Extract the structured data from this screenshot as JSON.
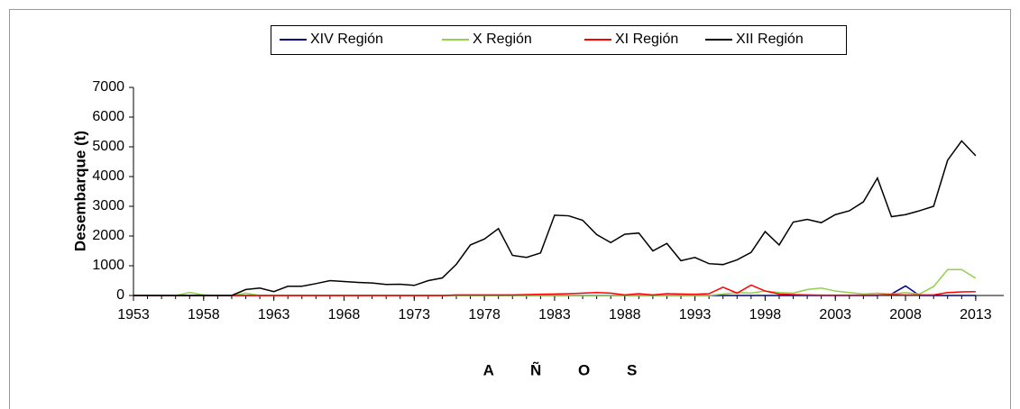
{
  "chart_data": {
    "type": "line",
    "ylabel": "Desembarque (t)",
    "xlabel": "A Ñ O S",
    "x": [
      1953,
      1954,
      1955,
      1956,
      1957,
      1958,
      1959,
      1960,
      1961,
      1962,
      1963,
      1964,
      1965,
      1966,
      1967,
      1968,
      1969,
      1970,
      1971,
      1972,
      1973,
      1974,
      1975,
      1976,
      1977,
      1978,
      1979,
      1980,
      1981,
      1982,
      1983,
      1984,
      1985,
      1986,
      1987,
      1988,
      1989,
      1990,
      1991,
      1992,
      1993,
      1994,
      1995,
      1996,
      1997,
      1998,
      1999,
      2000,
      2001,
      2002,
      2003,
      2004,
      2005,
      2006,
      2007,
      2008,
      2009,
      2010,
      2011,
      2012,
      2013
    ],
    "series": [
      {
        "name": "XIV Región",
        "color": "#000080",
        "values": [
          0,
          0,
          0,
          0,
          0,
          0,
          0,
          0,
          0,
          0,
          0,
          0,
          0,
          0,
          0,
          0,
          0,
          0,
          0,
          0,
          0,
          0,
          0,
          0,
          0,
          0,
          0,
          0,
          0,
          0,
          0,
          0,
          0,
          0,
          0,
          0,
          0,
          0,
          0,
          0,
          0,
          0,
          0,
          0,
          0,
          0,
          0,
          0,
          0,
          0,
          0,
          0,
          0,
          0,
          50,
          320,
          0,
          0,
          0,
          0,
          0
        ]
      },
      {
        "name": "X Región",
        "color": "#92d050",
        "values": [
          0,
          0,
          0,
          0,
          100,
          20,
          0,
          0,
          80,
          0,
          0,
          0,
          0,
          0,
          0,
          0,
          0,
          0,
          0,
          0,
          0,
          0,
          0,
          0,
          0,
          0,
          0,
          0,
          0,
          0,
          0,
          0,
          0,
          0,
          0,
          0,
          0,
          0,
          0,
          0,
          0,
          0,
          50,
          100,
          80,
          150,
          100,
          80,
          200,
          250,
          150,
          100,
          50,
          80,
          50,
          100,
          50,
          300,
          870,
          870,
          580
        ]
      },
      {
        "name": "XI Región",
        "color": "#ff0000",
        "values": [
          0,
          0,
          0,
          0,
          0,
          0,
          0,
          0,
          0,
          0,
          0,
          0,
          0,
          0,
          0,
          0,
          0,
          0,
          0,
          0,
          0,
          0,
          0,
          20,
          20,
          20,
          20,
          20,
          30,
          40,
          50,
          60,
          80,
          100,
          80,
          20,
          60,
          20,
          60,
          50,
          40,
          60,
          280,
          80,
          350,
          150,
          50,
          30,
          20,
          10,
          10,
          10,
          10,
          20,
          30,
          20,
          20,
          20,
          100,
          120,
          130
        ]
      },
      {
        "name": "XII Región",
        "color": "#000000",
        "values": [
          0,
          0,
          0,
          0,
          0,
          0,
          0,
          0,
          200,
          250,
          130,
          310,
          310,
          400,
          500,
          470,
          440,
          420,
          370,
          380,
          340,
          500,
          590,
          1050,
          1700,
          1900,
          2250,
          1350,
          1280,
          1430,
          2700,
          2680,
          2530,
          2050,
          1780,
          2060,
          2100,
          1500,
          1750,
          1170,
          1280,
          1070,
          1040,
          1200,
          1450,
          2150,
          1700,
          2470,
          2560,
          2450,
          2720,
          2850,
          3150,
          3950,
          2650,
          2720,
          2850,
          3000,
          4550,
          5200,
          4700
        ]
      }
    ],
    "xlim": [
      1953,
      2015
    ],
    "xticks": [
      1953,
      1958,
      1963,
      1968,
      1973,
      1978,
      1983,
      1988,
      1993,
      1998,
      2003,
      2008,
      2013
    ],
    "ylim": [
      0,
      7000
    ],
    "yticks": [
      0,
      1000,
      2000,
      3000,
      4000,
      5000,
      6000,
      7000
    ],
    "grid": false
  }
}
